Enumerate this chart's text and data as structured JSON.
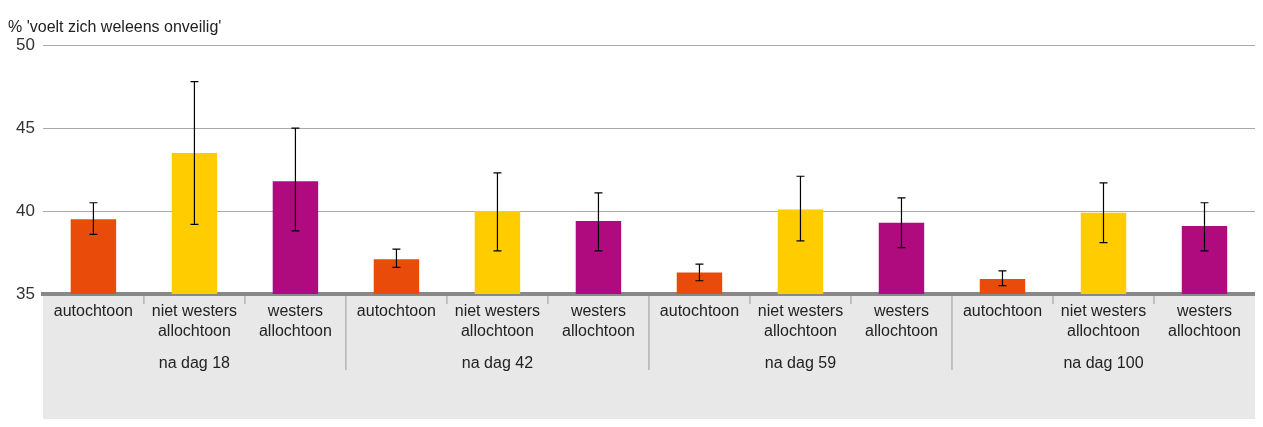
{
  "chart_data": {
    "type": "bar",
    "ylabel": "% 'voelt zich weleens onveilig'",
    "categories": [
      "na dag 18",
      "na dag 42",
      "na dag 59",
      "na dag 100"
    ],
    "series": [
      {
        "name": "autochtoon",
        "color": "#e94c0a",
        "values": [
          39.5,
          37.1,
          36.3,
          35.9
        ],
        "errors": [
          [
            38.6,
            40.5
          ],
          [
            36.6,
            37.7
          ],
          [
            35.8,
            36.8
          ],
          [
            35.5,
            36.4
          ]
        ]
      },
      {
        "name": "niet westers allochtoon",
        "color": "#ffcc00",
        "values": [
          43.5,
          40.0,
          40.1,
          39.9
        ],
        "errors": [
          [
            39.2,
            47.8
          ],
          [
            37.6,
            42.3
          ],
          [
            38.2,
            42.1
          ],
          [
            38.1,
            41.7
          ]
        ]
      },
      {
        "name": "westers allochtoon",
        "color": "#af0b7e",
        "values": [
          41.8,
          39.4,
          39.3,
          39.1
        ],
        "errors": [
          [
            38.8,
            45.0
          ],
          [
            37.6,
            41.1
          ],
          [
            37.8,
            40.8
          ],
          [
            37.6,
            40.5
          ]
        ]
      }
    ],
    "ylim": [
      35,
      50
    ],
    "yticks": [
      35,
      40,
      45,
      50
    ],
    "grid": "y",
    "legend": false
  }
}
